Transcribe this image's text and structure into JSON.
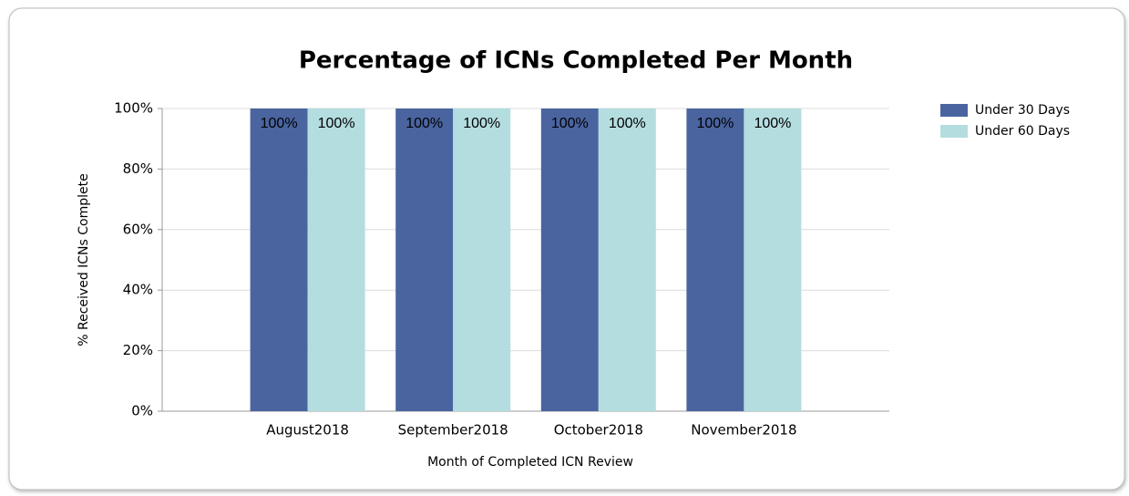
{
  "chart_data": {
    "type": "bar",
    "title": "Percentage of ICNs Completed Per Month",
    "x_label": "Month of Completed ICN Review",
    "y_label": "% Received ICNs Complete",
    "categories": [
      "August2018",
      "September2018",
      "October2018",
      "November2018"
    ],
    "series": [
      {
        "name": "Under 30 Days",
        "color": "#4a64a0",
        "values": [
          100,
          100,
          100,
          100
        ],
        "value_labels": [
          "100%",
          "100%",
          "100%",
          "100%"
        ]
      },
      {
        "name": "Under 60 Days",
        "color": "#b4dde0",
        "values": [
          100,
          100,
          100,
          100
        ],
        "value_labels": [
          "100%",
          "100%",
          "100%",
          "100%"
        ]
      }
    ],
    "ylim": [
      0,
      100
    ],
    "yticks": [
      {
        "value": 0,
        "label": "0%"
      },
      {
        "value": 20,
        "label": "20%"
      },
      {
        "value": 40,
        "label": "40%"
      },
      {
        "value": 60,
        "label": "60%"
      },
      {
        "value": 80,
        "label": "80%"
      },
      {
        "value": 100,
        "label": "100%"
      }
    ],
    "grid": true,
    "legend": "right"
  }
}
